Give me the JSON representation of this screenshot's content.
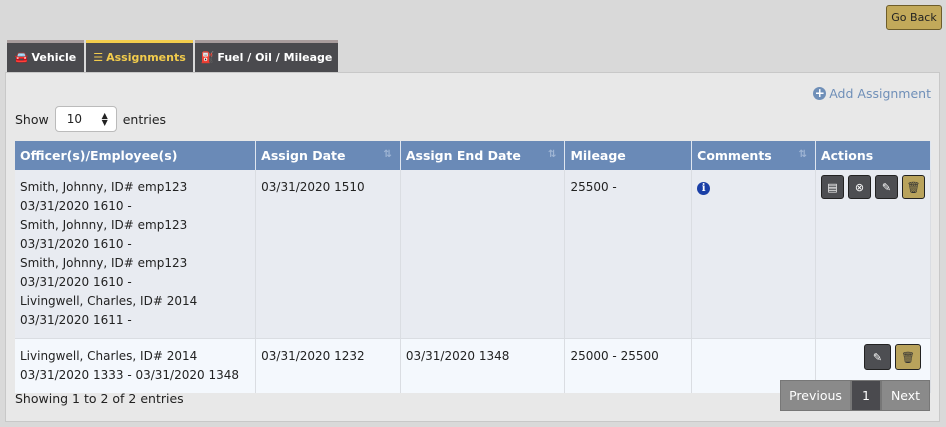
{
  "go_back": "Go Back",
  "tabs": [
    {
      "label": "Vehicle",
      "icon": "car-icon"
    },
    {
      "label": "Assignments",
      "icon": "list-icon",
      "active": true
    },
    {
      "label": "Fuel / Oil / Mileage",
      "icon": "oil-can-icon"
    }
  ],
  "add_assignment": "Add Assignment",
  "show": {
    "prefix": "Show",
    "value": "10",
    "suffix": "entries"
  },
  "columns": [
    "Officer(s)/Employee(s)",
    "Assign Date",
    "Assign End Date",
    "Mileage",
    "Comments",
    "Actions"
  ],
  "rows": [
    {
      "officers": [
        "Smith, Johnny, ID# emp123",
        "03/31/2020 1610 -",
        "Smith, Johnny, ID# emp123",
        "03/31/2020 1610 -",
        "Smith, Johnny, ID# emp123",
        "03/31/2020 1610 -",
        "Livingwell, Charles, ID# 2014",
        "03/31/2020 1611 -"
      ],
      "assign_date": "03/31/2020 1510",
      "end_date": "",
      "mileage": "25500 -",
      "has_comment": true,
      "actions": [
        "view",
        "cancel",
        "edit",
        "delete"
      ]
    },
    {
      "officers": [
        "Livingwell, Charles, ID# 2014",
        "03/31/2020 1333 - 03/31/2020 1348"
      ],
      "assign_date": "03/31/2020 1232",
      "end_date": "03/31/2020 1348",
      "mileage": "25000 - 25500",
      "has_comment": false,
      "actions": [
        "edit",
        "delete"
      ]
    }
  ],
  "info": "Showing 1 to 2 of 2 entries",
  "pager": {
    "previous": "Previous",
    "page": "1",
    "next": "Next"
  },
  "colors": {
    "header": "#6a8ab7",
    "accent": "#f2cc4c",
    "gold": "#c2a95a"
  }
}
